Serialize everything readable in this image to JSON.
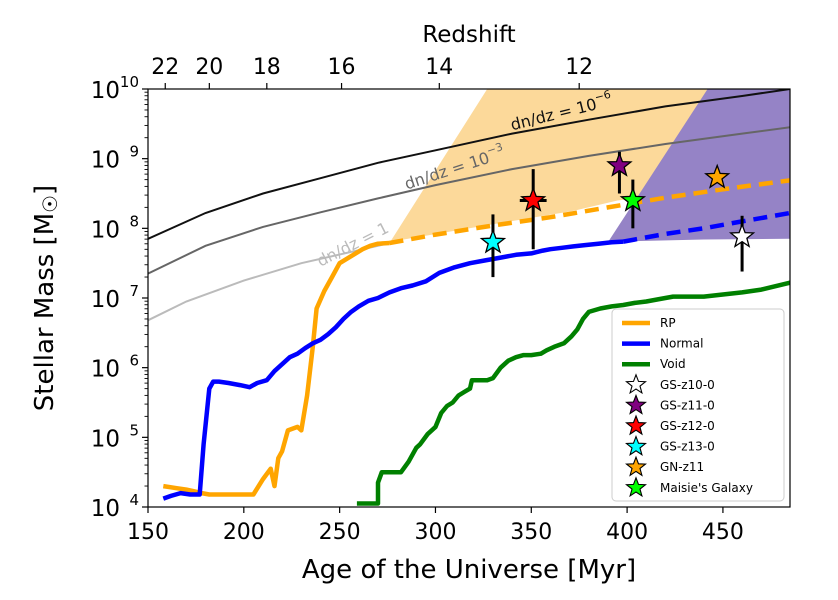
{
  "chart_data": {
    "type": "line",
    "xlabel": "Age of the Universe [Myr]",
    "ylabel": "Stellar Mass [M",
    "ylabel_symbol": "☉",
    "ylabel_close": "]",
    "top_axis_label": "Redshift",
    "xlim": [
      150,
      485
    ],
    "ylim_log10": [
      4,
      10
    ],
    "x_ticks": [
      150,
      200,
      250,
      300,
      350,
      400,
      450
    ],
    "y_ticks_exp": [
      4,
      5,
      6,
      7,
      8,
      9,
      10
    ],
    "y_tick_base": "10",
    "top_ticks": [
      {
        "label": "22",
        "age": 159
      },
      {
        "label": "20",
        "age": 182
      },
      {
        "label": "18",
        "age": 212
      },
      {
        "label": "16",
        "age": 251
      },
      {
        "label": "14",
        "age": 302
      },
      {
        "label": "12",
        "age": 375
      }
    ],
    "colors": {
      "rp": "#ffa500",
      "normal": "#0000ff",
      "void": "#008000",
      "rp_region": "#fcd99a",
      "normal_region": "#9583c6",
      "dn1": "#bbbbbb",
      "dn3": "#666666",
      "dn6": "#111111"
    },
    "regions": {
      "rp": [
        [
          276,
          7.79
        ],
        [
          327,
          10
        ],
        [
          485,
          10
        ],
        [
          485,
          8.69
        ],
        [
          395,
          8.4
        ],
        [
          372,
          8.25
        ],
        [
          330,
          8.06
        ],
        [
          275,
          7.8
        ]
      ],
      "normal": [
        [
          390,
          7.8
        ],
        [
          442,
          10
        ],
        [
          485,
          10
        ],
        [
          485,
          7.85
        ],
        [
          440,
          7.84
        ],
        [
          393,
          7.81
        ]
      ]
    },
    "series": [
      {
        "name": "RP",
        "key": "rp",
        "x": [
          158,
          165,
          170,
          175,
          178,
          182,
          190,
          200,
          205,
          210,
          214,
          216,
          218,
          220,
          223,
          228,
          230,
          233,
          236,
          238,
          242,
          246,
          250,
          256,
          262,
          266,
          270,
          276
        ],
        "y": [
          4.3,
          4.27,
          4.25,
          4.22,
          4.2,
          4.18,
          4.18,
          4.18,
          4.18,
          4.4,
          4.55,
          4.3,
          4.7,
          4.8,
          5.1,
          5.15,
          5.1,
          5.6,
          6.3,
          6.85,
          7.1,
          7.3,
          7.5,
          7.6,
          7.7,
          7.75,
          7.78,
          7.79
        ]
      },
      {
        "name": "",
        "key": "rp",
        "dashed": true,
        "x": [
          276,
          300,
          330,
          360,
          390,
          420,
          450,
          485
        ],
        "y": [
          7.79,
          7.91,
          8.04,
          8.16,
          8.3,
          8.44,
          8.56,
          8.69
        ]
      },
      {
        "name": "Normal",
        "key": "normal",
        "x": [
          158,
          162,
          167,
          172,
          177,
          179,
          182,
          184,
          187,
          192,
          198,
          203,
          207,
          212,
          216,
          220,
          224,
          228,
          232,
          236,
          240,
          244,
          248,
          252,
          256,
          260,
          265,
          270,
          276,
          282,
          288,
          295,
          302,
          310,
          318,
          326,
          334,
          342,
          350,
          356,
          360,
          366,
          372,
          378,
          385,
          392,
          398
        ],
        "y": [
          4.12,
          4.16,
          4.2,
          4.18,
          4.18,
          4.9,
          5.7,
          5.8,
          5.8,
          5.78,
          5.75,
          5.72,
          5.78,
          5.82,
          5.95,
          6.05,
          6.15,
          6.2,
          6.28,
          6.35,
          6.4,
          6.48,
          6.58,
          6.7,
          6.8,
          6.88,
          6.96,
          7.0,
          7.08,
          7.14,
          7.18,
          7.24,
          7.36,
          7.44,
          7.5,
          7.54,
          7.58,
          7.62,
          7.64,
          7.68,
          7.7,
          7.72,
          7.74,
          7.76,
          7.78,
          7.8,
          7.81
        ]
      },
      {
        "name": "",
        "key": "normal",
        "dashed": true,
        "x": [
          398,
          420,
          440,
          460,
          485
        ],
        "y": [
          7.81,
          7.92,
          8.0,
          8.1,
          8.22
        ]
      },
      {
        "name": "Void",
        "key": "void",
        "x": [
          259,
          270,
          270,
          272,
          282,
          286,
          290,
          292,
          296,
          300,
          303,
          306,
          309,
          312,
          315,
          318,
          319,
          327,
          330,
          334,
          338,
          342,
          346,
          350,
          355,
          358,
          362,
          367,
          371,
          374,
          377,
          380,
          386,
          392,
          398,
          404,
          410,
          416,
          420,
          424,
          430,
          440,
          450,
          460,
          470,
          485
        ],
        "y": [
          4.05,
          4.05,
          4.35,
          4.5,
          4.5,
          4.65,
          4.85,
          4.9,
          5.05,
          5.15,
          5.35,
          5.45,
          5.5,
          5.6,
          5.65,
          5.7,
          5.82,
          5.82,
          5.85,
          6.0,
          6.1,
          6.15,
          6.18,
          6.18,
          6.2,
          6.25,
          6.3,
          6.35,
          6.45,
          6.55,
          6.7,
          6.8,
          6.85,
          6.88,
          6.9,
          6.93,
          6.95,
          6.98,
          7.0,
          7.02,
          7.02,
          7.02,
          7.05,
          7.08,
          7.12,
          7.22
        ]
      }
    ],
    "density_curves": [
      {
        "key": "dn1",
        "label": "dn/dz = 1",
        "label_base": "dn/dz = 1",
        "label_exp": "",
        "x": [
          150,
          170,
          200,
          230,
          270,
          276
        ],
        "y": [
          6.68,
          6.95,
          7.25,
          7.5,
          7.75,
          7.79
        ]
      },
      {
        "key": "dn3",
        "label": "dn/dz = 10",
        "label_base": "dn/dz = 10",
        "label_exp": "−3",
        "x": [
          150,
          180,
          210,
          240,
          270,
          300,
          340,
          380,
          420,
          460,
          485
        ],
        "y": [
          7.35,
          7.75,
          8.02,
          8.23,
          8.43,
          8.62,
          8.85,
          9.04,
          9.21,
          9.36,
          9.45
        ]
      },
      {
        "key": "dn6",
        "label": "dn/dz = 10",
        "label_base": "dn/dz = 10",
        "label_exp": "−6",
        "x": [
          150,
          180,
          210,
          240,
          270,
          300,
          340,
          380,
          420,
          460,
          485
        ],
        "y": [
          7.85,
          8.22,
          8.5,
          8.72,
          8.94,
          9.12,
          9.36,
          9.56,
          9.75,
          9.9,
          10.0
        ]
      }
    ],
    "galaxies": [
      {
        "name": "GS-z10-0",
        "x": 460,
        "y": 7.88,
        "yerr_low": 7.38,
        "yerr_high": 8.18,
        "xerr": 0,
        "color": "#ffffff"
      },
      {
        "name": "GS-z11-0",
        "x": 396,
        "y": 8.9,
        "yerr_low": 8.5,
        "yerr_high": 9.1,
        "xerr": 0,
        "color": "#800080"
      },
      {
        "name": "GS-z12-0",
        "x": 351,
        "y": 8.4,
        "yerr_low": 7.7,
        "yerr_high": 8.85,
        "xerr": 7,
        "color": "#ff0000"
      },
      {
        "name": "GS-z13-0",
        "x": 330,
        "y": 7.8,
        "yerr_low": 7.3,
        "yerr_high": 8.2,
        "xerr": 0,
        "color": "#00ffff"
      },
      {
        "name": "GN-z11",
        "x": 447,
        "y": 8.73,
        "yerr_low": 8.73,
        "yerr_high": 8.73,
        "xerr": 0,
        "color": "#ffa500"
      },
      {
        "name": "Maisie's Galaxy",
        "x": 403,
        "y": 8.4,
        "yerr_low": 8.0,
        "yerr_high": 8.7,
        "xerr": 0,
        "color": "#00ff00"
      }
    ],
    "legend": {
      "placement": "lower-right",
      "lines": [
        {
          "label": "RP",
          "key": "rp"
        },
        {
          "label": "Normal",
          "key": "normal"
        },
        {
          "label": "Void",
          "key": "void"
        }
      ],
      "stars": [
        {
          "label": "GS-z10-0",
          "color": "#ffffff"
        },
        {
          "label": "GS-z11-0",
          "color": "#800080"
        },
        {
          "label": "GS-z12-0",
          "color": "#ff0000"
        },
        {
          "label": "GS-z13-0",
          "color": "#00ffff"
        },
        {
          "label": "GN-z11",
          "color": "#ffa500"
        },
        {
          "label": "Maisie's Galaxy",
          "color": "#00ff00"
        }
      ]
    }
  }
}
